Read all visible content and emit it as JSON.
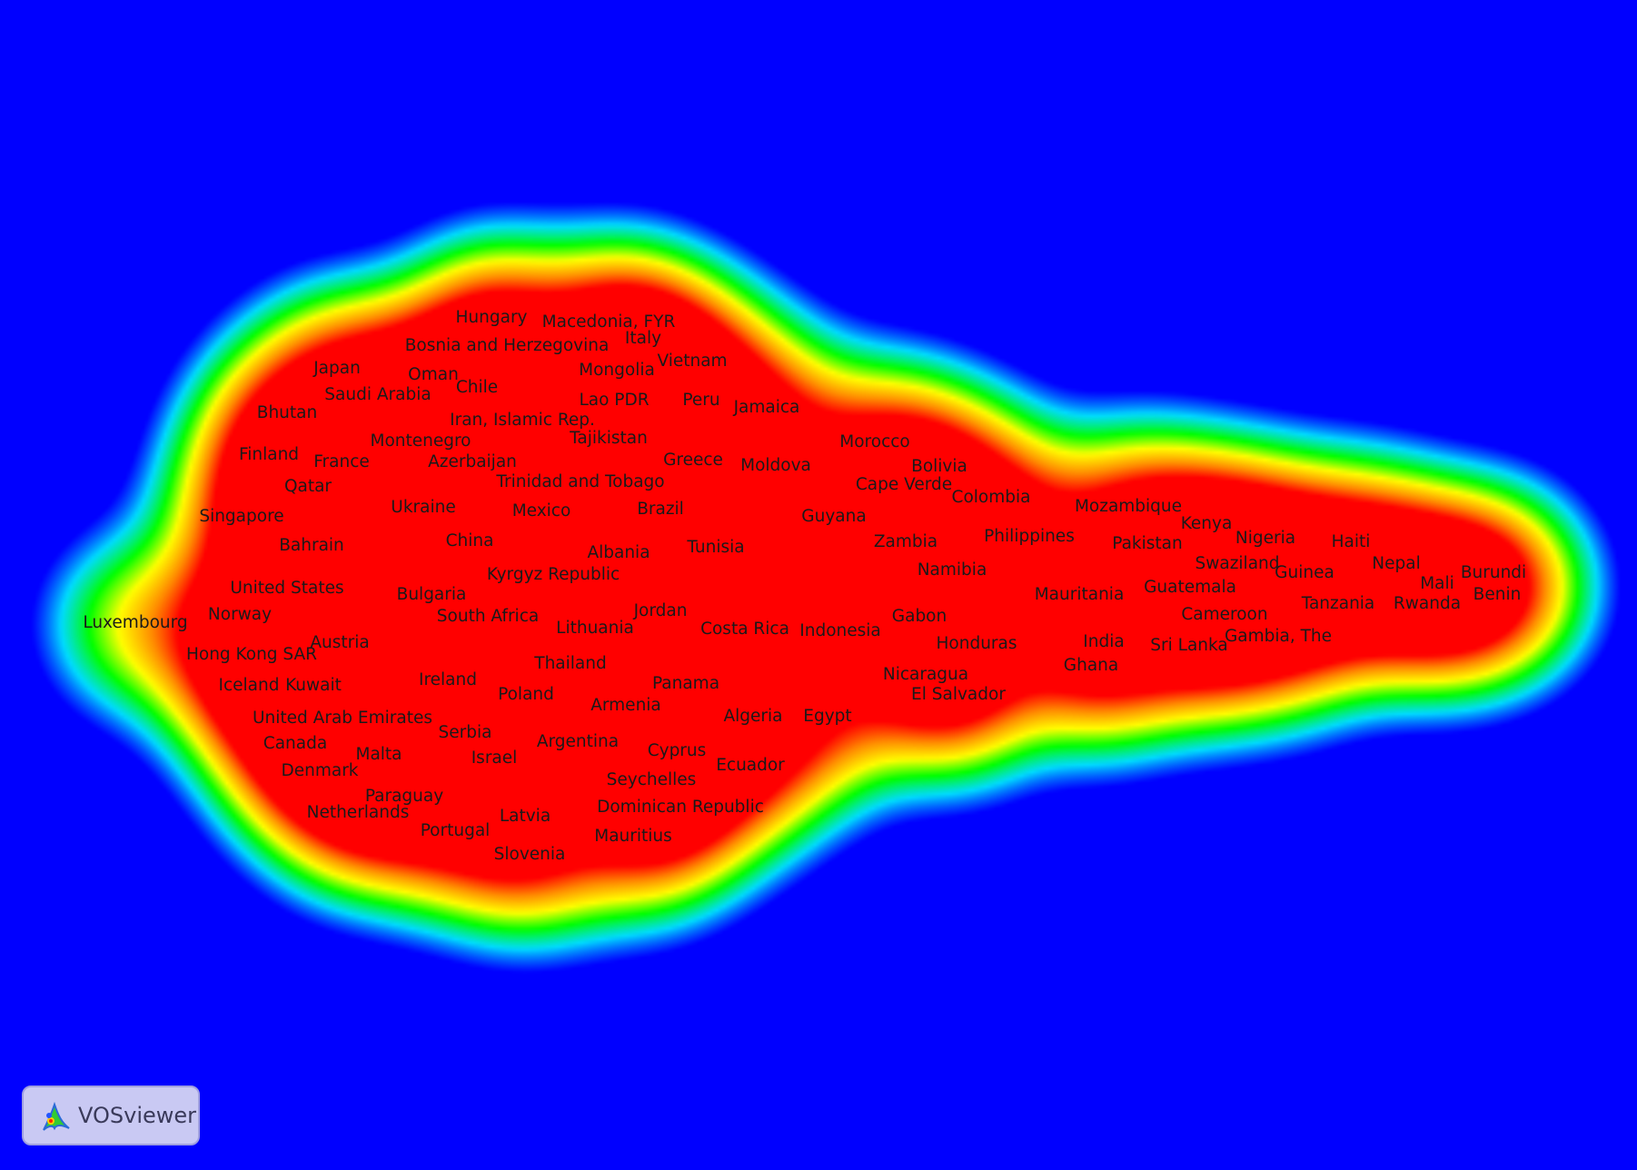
{
  "colors": {
    "background": "#0000ff",
    "density_scale": [
      "#0000ff",
      "#00ffff",
      "#00ff00",
      "#ffff00",
      "#ff7f00",
      "#ff0000"
    ]
  },
  "logo": {
    "text": "VOSviewer",
    "icon": "vosviewer-logo-icon"
  },
  "labels": [
    {
      "text": "Hungary"
    },
    {
      "text": "Macedonia, FYR"
    },
    {
      "text": "Italy"
    },
    {
      "text": "Bosnia and Herzegovina"
    },
    {
      "text": "Vietnam"
    },
    {
      "text": "Japan"
    },
    {
      "text": "Oman"
    },
    {
      "text": "Mongolia"
    },
    {
      "text": "Chile"
    },
    {
      "text": "Saudi Arabia"
    },
    {
      "text": "Lao PDR"
    },
    {
      "text": "Peru"
    },
    {
      "text": "Jamaica"
    },
    {
      "text": "Bhutan"
    },
    {
      "text": "Iran, Islamic Rep."
    },
    {
      "text": "Montenegro"
    },
    {
      "text": "Tajikistan"
    },
    {
      "text": "Morocco"
    },
    {
      "text": "Finland"
    },
    {
      "text": "France"
    },
    {
      "text": "Azerbaijan"
    },
    {
      "text": "Greece"
    },
    {
      "text": "Moldova"
    },
    {
      "text": "Bolivia"
    },
    {
      "text": "Qatar"
    },
    {
      "text": "Trinidad and Tobago"
    },
    {
      "text": "Cape Verde"
    },
    {
      "text": "Colombia"
    },
    {
      "text": "Ukraine"
    },
    {
      "text": "Mexico"
    },
    {
      "text": "Brazil"
    },
    {
      "text": "Mozambique"
    },
    {
      "text": "Singapore"
    },
    {
      "text": "Guyana"
    },
    {
      "text": "Kenya"
    },
    {
      "text": "Philippines"
    },
    {
      "text": "Nigeria"
    },
    {
      "text": "China"
    },
    {
      "text": "Zambia"
    },
    {
      "text": "Pakistan"
    },
    {
      "text": "Haiti"
    },
    {
      "text": "Bahrain"
    },
    {
      "text": "Albania"
    },
    {
      "text": "Tunisia"
    },
    {
      "text": "Swaziland"
    },
    {
      "text": "Nepal"
    },
    {
      "text": "Namibia"
    },
    {
      "text": "Guinea"
    },
    {
      "text": "Burundi"
    },
    {
      "text": "Kyrgyz Republic"
    },
    {
      "text": "United States"
    },
    {
      "text": "Mali"
    },
    {
      "text": "Guatemala"
    },
    {
      "text": "Bulgaria"
    },
    {
      "text": "Mauritania"
    },
    {
      "text": "Benin"
    },
    {
      "text": "Tanzania"
    },
    {
      "text": "Rwanda"
    },
    {
      "text": "Jordan"
    },
    {
      "text": "Norway"
    },
    {
      "text": "South Africa"
    },
    {
      "text": "Cameroon"
    },
    {
      "text": "Gabon"
    },
    {
      "text": "Luxembourg"
    },
    {
      "text": "Lithuania"
    },
    {
      "text": "Costa Rica"
    },
    {
      "text": "Indonesia"
    },
    {
      "text": "Gambia, The"
    },
    {
      "text": "Austria"
    },
    {
      "text": "India"
    },
    {
      "text": "Honduras"
    },
    {
      "text": "Sri Lanka"
    },
    {
      "text": "Hong Kong SAR"
    },
    {
      "text": "Thailand"
    },
    {
      "text": "Ghana"
    },
    {
      "text": "Nicaragua"
    },
    {
      "text": "Iceland"
    },
    {
      "text": "Kuwait"
    },
    {
      "text": "Ireland"
    },
    {
      "text": "Panama"
    },
    {
      "text": "Poland"
    },
    {
      "text": "El Salvador"
    },
    {
      "text": "Armenia"
    },
    {
      "text": "United Arab Emirates"
    },
    {
      "text": "Algeria"
    },
    {
      "text": "Egypt"
    },
    {
      "text": "Serbia"
    },
    {
      "text": "Canada"
    },
    {
      "text": "Argentina"
    },
    {
      "text": "Malta"
    },
    {
      "text": "Cyprus"
    },
    {
      "text": "Israel"
    },
    {
      "text": "Ecuador"
    },
    {
      "text": "Denmark"
    },
    {
      "text": "Seychelles"
    },
    {
      "text": "Paraguay"
    },
    {
      "text": "Dominican Republic"
    },
    {
      "text": "Netherlands"
    },
    {
      "text": "Latvia"
    },
    {
      "text": "Portugal"
    },
    {
      "text": "Mauritius"
    },
    {
      "text": "Slovenia"
    }
  ]
}
